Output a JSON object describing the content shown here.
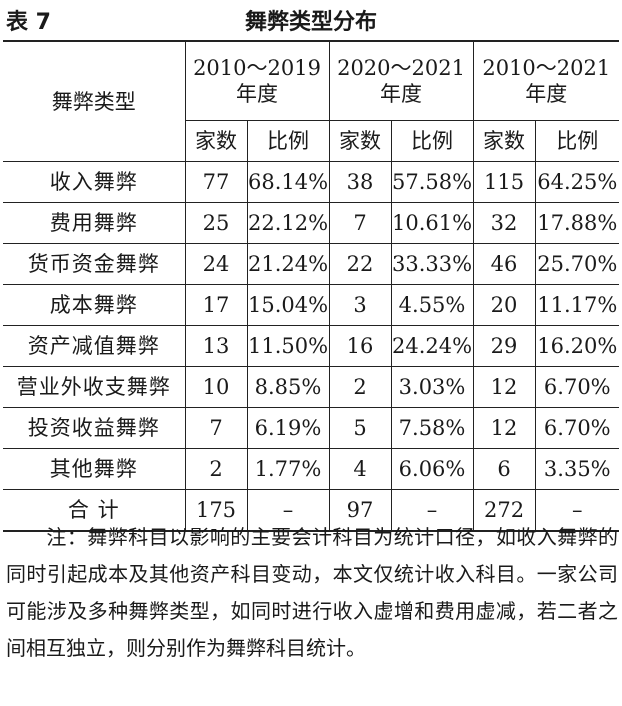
{
  "caption": {
    "number": "表 7",
    "title": "舞弊类型分布"
  },
  "table": {
    "type_header": "舞弊类型",
    "periods": [
      "2010～2019年度",
      "2020～2021年度",
      "2010～2021年度"
    ],
    "sub_headers": [
      "家数",
      "比例",
      "家数",
      "比例",
      "家数",
      "比例"
    ],
    "rows": [
      {
        "type": "收入舞弊",
        "values": [
          "77",
          "68.14%",
          "38",
          "57.58%",
          "115",
          "64.25%"
        ]
      },
      {
        "type": "费用舞弊",
        "values": [
          "25",
          "22.12%",
          "7",
          "10.61%",
          "32",
          "17.88%"
        ]
      },
      {
        "type": "货币资金舞弊",
        "values": [
          "24",
          "21.24%",
          "22",
          "33.33%",
          "46",
          "25.70%"
        ]
      },
      {
        "type": "成本舞弊",
        "values": [
          "17",
          "15.04%",
          "3",
          "4.55%",
          "20",
          "11.17%"
        ]
      },
      {
        "type": "资产减值舞弊",
        "values": [
          "13",
          "11.50%",
          "16",
          "24.24%",
          "29",
          "16.20%"
        ]
      },
      {
        "type": "营业外收支舞弊",
        "values": [
          "10",
          "8.85%",
          "2",
          "3.03%",
          "12",
          "6.70%"
        ]
      },
      {
        "type": "投资收益舞弊",
        "values": [
          "7",
          "6.19%",
          "5",
          "7.58%",
          "12",
          "6.70%"
        ]
      },
      {
        "type": "其他舞弊",
        "values": [
          "2",
          "1.77%",
          "4",
          "6.06%",
          "6",
          "3.35%"
        ]
      },
      {
        "type": "合 计",
        "values": [
          "175",
          "–",
          "97",
          "–",
          "272",
          "–"
        ]
      }
    ]
  },
  "note": "注：舞弊科目以影响的主要会计科目为统计口径，如收入舞弊的同时引起成本及其他资产科目变动，本文仅统计收入科目。一家公司可能涉及多种舞弊类型，如同时进行收入虚增和费用虚减，若二者之间相互独立，则分别作为舞弊科目统计。"
}
